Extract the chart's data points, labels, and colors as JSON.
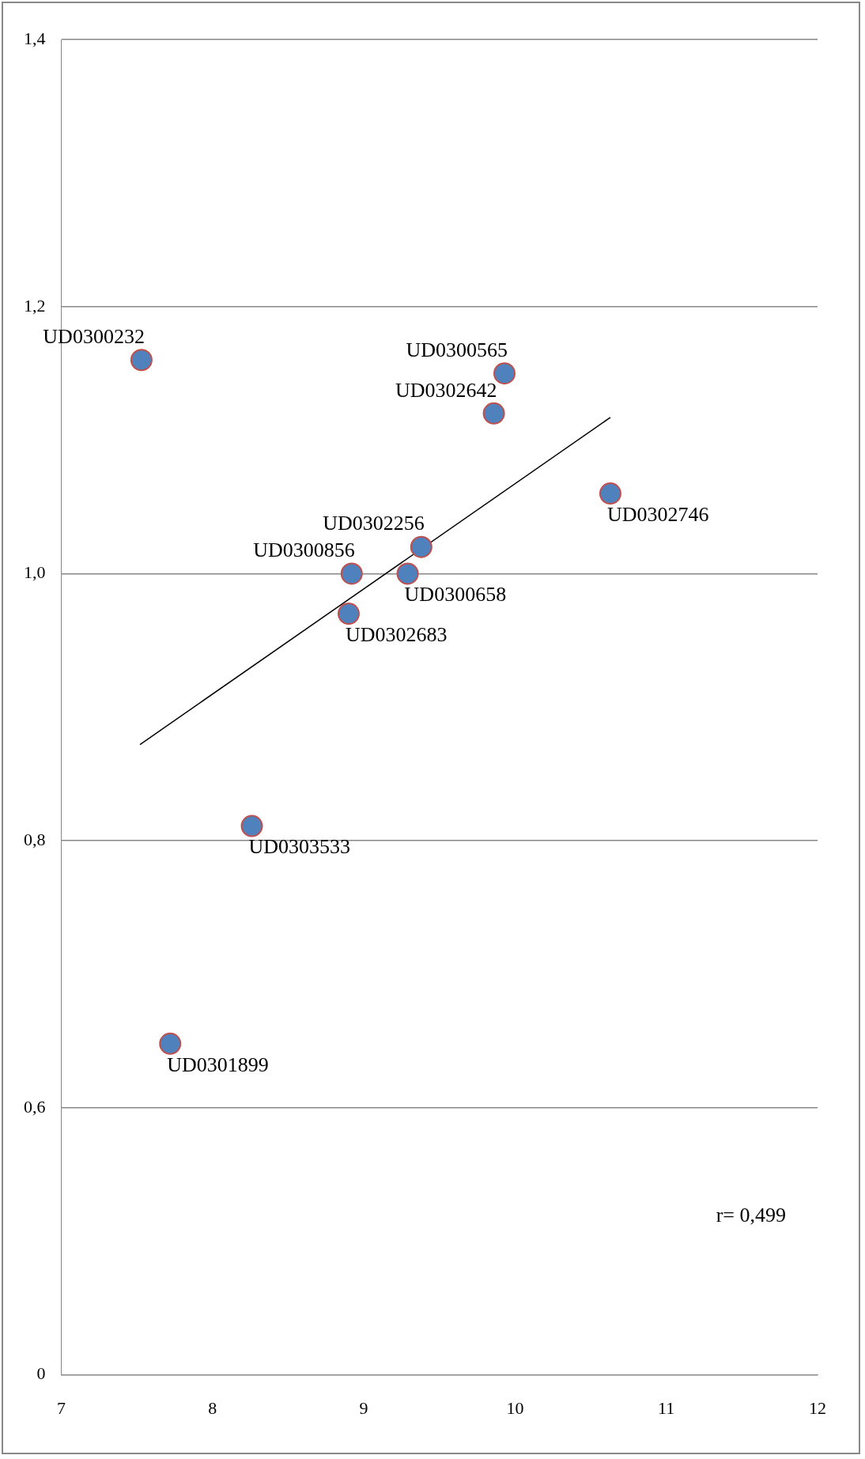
{
  "chart_data": {
    "type": "scatter",
    "grid": "y",
    "series": [
      {
        "color": "#4f81bd",
        "marker": "circle",
        "x": [
          7.53,
          7.72,
          8.26,
          8.92,
          8.9,
          9.29,
          9.38,
          9.86,
          9.93,
          10.63
        ],
        "values": [
          1.16,
          0.648,
          0.811,
          1.0,
          0.97,
          1.0,
          1.02,
          1.12,
          1.15,
          1.06
        ]
      },
      {
        "type": "line",
        "marker": "none",
        "color": "#000000",
        "x": [
          7.52,
          10.63
        ],
        "values": [
          0.872,
          1.117
        ]
      }
    ],
    "xlim": [
      7,
      12
    ],
    "xticks": [
      7,
      8,
      9,
      10,
      11,
      12
    ],
    "ylim": [
      0.4,
      1.4
    ],
    "yticks": [
      {
        "value": 0.4,
        "label": "0"
      },
      {
        "value": 0.6,
        "label": "0,6"
      },
      {
        "value": 0.8,
        "label": "0,8"
      },
      {
        "value": 1.0,
        "label": "1,0"
      },
      {
        "value": 1.2,
        "label": "1,2"
      },
      {
        "value": 1.4,
        "label": "1,4"
      }
    ],
    "annotations": [
      {
        "text": "UD0300232",
        "x": 7.53,
        "y": 1.16
      },
      {
        "text": "UD0301899",
        "x": 7.72,
        "y": 0.648
      },
      {
        "text": "UD0303533",
        "x": 8.26,
        "y": 0.811
      },
      {
        "text": "UD0300856",
        "x": 8.92,
        "y": 1.0
      },
      {
        "text": "UD0302683",
        "x": 8.9,
        "y": 0.97
      },
      {
        "text": "UD0300658",
        "x": 9.29,
        "y": 1.0
      },
      {
        "text": "UD0302256",
        "x": 9.38,
        "y": 1.02
      },
      {
        "text": "UD0302642",
        "x": 9.86,
        "y": 1.12
      },
      {
        "text": "UD0300565",
        "x": 9.93,
        "y": 1.15
      },
      {
        "text": "UD0302746",
        "x": 10.63,
        "y": 1.06
      },
      "r= 0,499"
    ]
  }
}
